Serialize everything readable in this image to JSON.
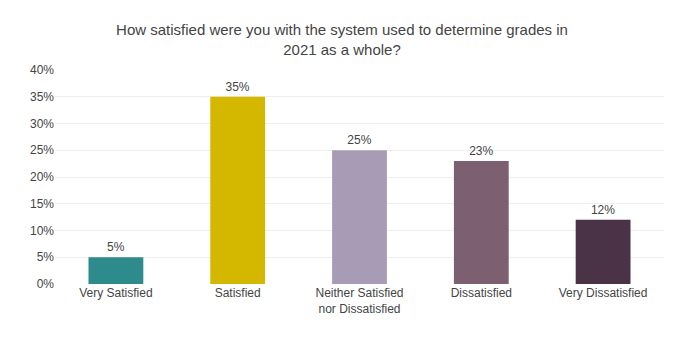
{
  "chart_data": {
    "type": "bar",
    "title": "How satisfied were you with the system used to determine grades in\n2021 as a whole?",
    "categories": [
      "Very Satisfied",
      "Satisfied",
      "Neither Satisfied\nnor Dissatisfied",
      "Dissatisfied",
      "Very Dissatisfied"
    ],
    "values": [
      5,
      35,
      25,
      23,
      12
    ],
    "value_labels": [
      "5%",
      "35%",
      "25%",
      "23%",
      "12%"
    ],
    "colors": [
      "#2e8b8b",
      "#d4b800",
      "#a89bb5",
      "#7d5f72",
      "#4a3347"
    ],
    "ylim": [
      0,
      40
    ],
    "yticks": [
      {
        "value": 0,
        "label": "0%"
      },
      {
        "value": 5,
        "label": "5%"
      },
      {
        "value": 10,
        "label": "10%"
      },
      {
        "value": 15,
        "label": "15%"
      },
      {
        "value": 20,
        "label": "20%"
      },
      {
        "value": 25,
        "label": "25%"
      },
      {
        "value": 30,
        "label": "30%"
      },
      {
        "value": 35,
        "label": "35%"
      },
      {
        "value": 40,
        "label": "40%"
      }
    ],
    "grid": true,
    "data_labels": true
  }
}
